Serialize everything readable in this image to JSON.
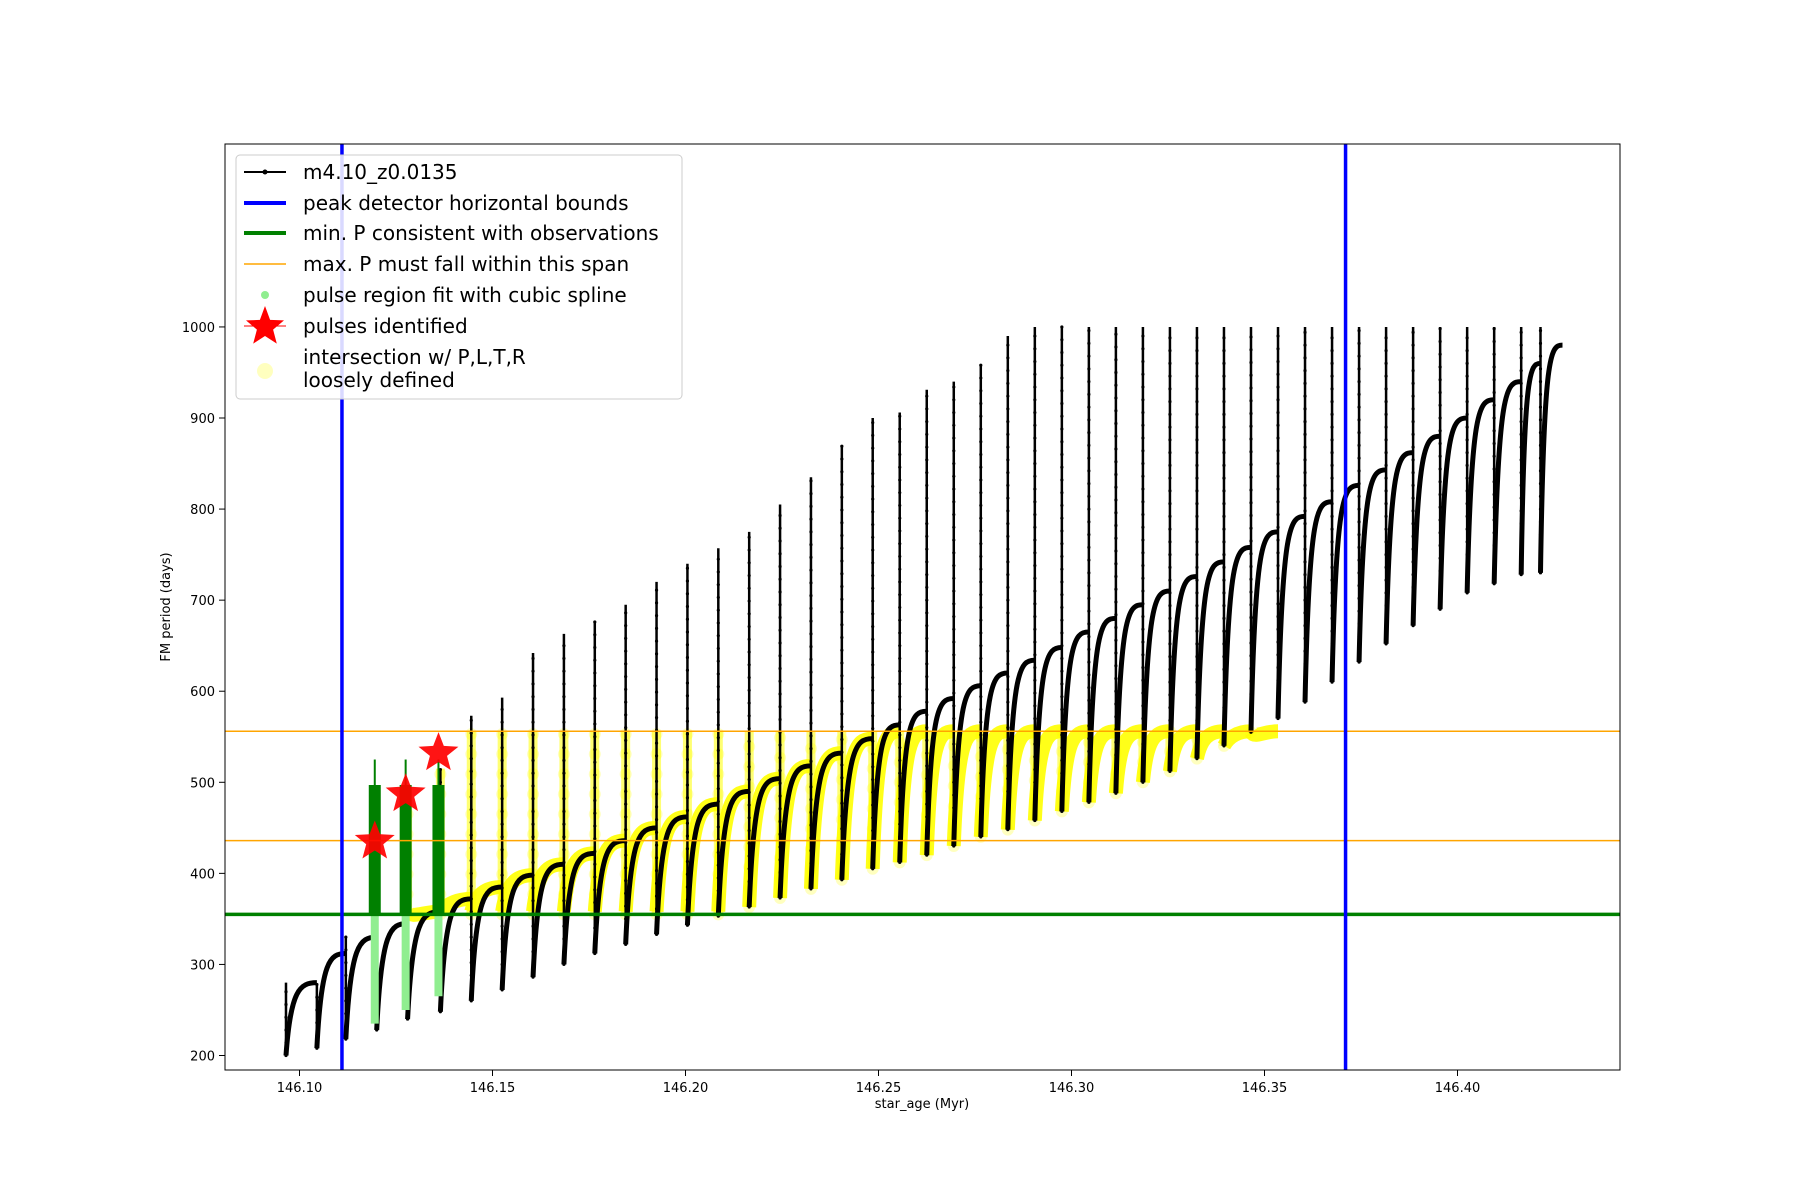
{
  "chart_data": {
    "type": "line",
    "title": "",
    "xlabel": "star_age (Myr)",
    "ylabel": "FM period (days)",
    "xlim": [
      146.08,
      146.44
    ],
    "ylim": [
      190,
      1000
    ],
    "x_ticks": [
      146.1,
      146.15,
      146.2,
      146.25,
      146.3,
      146.35,
      146.4
    ],
    "x_tick_labels": [
      "146.10",
      "146.15",
      "146.20",
      "146.25",
      "146.30",
      "146.35",
      "146.40"
    ],
    "y_ticks": [
      200,
      300,
      400,
      500,
      600,
      700,
      800,
      900,
      1000
    ],
    "y_tick_labels": [
      "200",
      "300",
      "400",
      "500",
      "600",
      "700",
      "800",
      "900",
      "1000"
    ],
    "grid": false,
    "legend_position": "top-left",
    "series": [
      {
        "name": "m4.10_z0.0135",
        "color": "#000000",
        "kind": "line-with-markers",
        "pulse_ages": [
          146.0965,
          146.1045,
          146.112,
          146.12,
          146.128,
          146.1365,
          146.1445,
          146.1525,
          146.1605,
          146.1685,
          146.1765,
          146.1845,
          146.1925,
          146.2005,
          146.2085,
          146.2165,
          146.2245,
          146.2325,
          146.2405,
          146.2485,
          146.2555,
          146.2625,
          146.2695,
          146.2765,
          146.2835,
          146.2905,
          146.2975,
          146.3045,
          146.3115,
          146.3185,
          146.3255,
          146.3325,
          146.3395,
          146.3465,
          146.3535,
          146.3605,
          146.3675,
          146.3745,
          146.3815,
          146.3885,
          146.3955,
          146.4025,
          146.4095,
          146.4165,
          146.4215
        ],
        "pulse_troughs": [
          200,
          208,
          218,
          228,
          240,
          248,
          260,
          272,
          286,
          300,
          312,
          322,
          333,
          343,
          353,
          363,
          373,
          383,
          393,
          405,
          412,
          420,
          430,
          440,
          448,
          458,
          468,
          478,
          488,
          500,
          512,
          526,
          540,
          555,
          570,
          588,
          610,
          632,
          652,
          672,
          690,
          708,
          718,
          728,
          730
        ],
        "pulse_peaks": [
          280,
          278,
          330,
          470,
          480,
          515,
          573,
          593,
          642,
          663,
          677,
          695,
          720,
          740,
          757,
          775,
          805,
          835,
          870,
          900,
          906,
          931,
          940,
          958,
          990,
          1000,
          1000,
          1000,
          1000,
          1000,
          1000,
          1000,
          1000,
          1000,
          1000,
          1000,
          1000,
          1000,
          1000,
          1000,
          1000,
          1000,
          1000,
          1000,
          1000
        ],
        "pulse_envelope_top": [
          280,
          312,
          330,
          345,
          358,
          372,
          385,
          398,
          410,
          422,
          436,
          450,
          462,
          476,
          490,
          504,
          518,
          532,
          548,
          563,
          578,
          592,
          606,
          620,
          634,
          648,
          665,
          680,
          695,
          710,
          726,
          742,
          758,
          775,
          792,
          808,
          826,
          843,
          862,
          880,
          900,
          920,
          940,
          960,
          980
        ]
      },
      {
        "name": "peak detector horizontal bounds",
        "color": "#0000ff",
        "kind": "vline",
        "x": [
          146.111,
          146.371
        ]
      },
      {
        "name": "min. P consistent with observations",
        "color": "#008000",
        "kind": "hline",
        "y": 355
      },
      {
        "name": "max. P must fall within this span",
        "color": "#ffa500",
        "kind": "hline",
        "y": [
          436,
          556
        ]
      },
      {
        "name": "pulse region fit with cubic spline",
        "color": "#90ee90",
        "kind": "marker"
      },
      {
        "name": "pulses identified",
        "color": "#ff0000",
        "kind": "star",
        "points": [
          {
            "x": 146.1195,
            "y": 435
          },
          {
            "x": 146.1275,
            "y": 487
          },
          {
            "x": 146.136,
            "y": 532
          }
        ]
      },
      {
        "name": "intersection w/ P,L,T,R\nloosely defined",
        "color": "#ffff00",
        "kind": "marker"
      }
    ],
    "legend": [
      "m4.10_z0.0135",
      "peak detector horizontal bounds",
      "min. P consistent with observations",
      "max. P must fall within this span",
      "pulse region fit with cubic spline",
      "pulses identified",
      "intersection w/ P,L,T,R",
      "loosely defined"
    ]
  }
}
